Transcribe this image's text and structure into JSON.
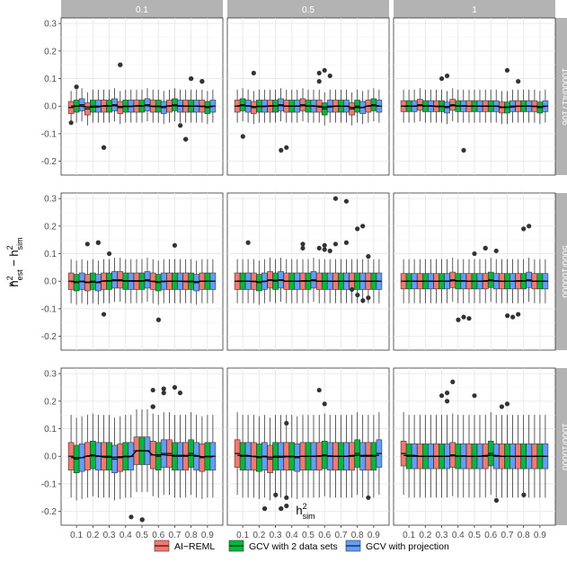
{
  "chart_data": {
    "type": "box",
    "xlabel": "h",
    "xlabel_sup": "2",
    "xlabel_sub": "sim",
    "ylabel_parts": {
      "hat": "^",
      "base": "h",
      "sup1": "2",
      "sub1": "est",
      "minus": " − h",
      "sup2": "2",
      "sub2": "sim"
    },
    "x_categories": [
      "0.1",
      "0.2",
      "0.3",
      "0.4",
      "0.5",
      "0.6",
      "0.7",
      "0.8",
      "0.9"
    ],
    "ylim": [
      -0.25,
      0.32
    ],
    "y_ticks": [
      -0.2,
      -0.1,
      0.0,
      0.1,
      0.2,
      0.3
    ],
    "y_tick_labels": [
      "-0.2",
      "-0.1",
      "0.0",
      "0.1",
      "0.2",
      "0.3"
    ],
    "grid": true,
    "legend_position": "bottom",
    "col_facets": [
      "0.1",
      "0.5",
      "1"
    ],
    "row_facets": [
      "10000/417106",
      "5000/100000",
      "1000/10000"
    ],
    "series": [
      {
        "name": "AI−REML",
        "color": "#F8766D"
      },
      {
        "name": "GCV with 2 data sets",
        "color": "#00BA38"
      },
      {
        "name": "GCV with projection",
        "color": "#619CFF"
      }
    ],
    "panels": [
      {
        "row": 0,
        "col": 0,
        "spread": 0.022,
        "whisker": 0.06,
        "medians": [
          [
            -0.005,
            0.0,
            0.005
          ],
          [
            -0.01,
            0.0,
            0.0
          ],
          [
            0.0,
            0.0,
            0.005
          ],
          [
            -0.005,
            0.0,
            0.0
          ],
          [
            0.0,
            0.0,
            0.005
          ],
          [
            0.0,
            0.0,
            -0.005
          ],
          [
            0.0,
            0.005,
            0.0
          ],
          [
            0.0,
            0.0,
            0.0
          ],
          [
            0.0,
            -0.005,
            0.0
          ]
        ],
        "outliers": [
          [
            0.1,
            0.07
          ],
          [
            0.1,
            -0.06
          ],
          [
            0.3,
            -0.15
          ],
          [
            0.3,
            -0.15
          ],
          [
            0.4,
            0.15
          ],
          [
            0.4,
            0.15
          ],
          [
            0.8,
            0.1
          ],
          [
            0.8,
            0.1
          ],
          [
            0.8,
            -0.12
          ],
          [
            0.8,
            -0.12
          ],
          [
            0.8,
            -0.07
          ],
          [
            0.9,
            0.09
          ],
          [
            0.9,
            0.09
          ]
        ]
      },
      {
        "row": 0,
        "col": 1,
        "spread": 0.022,
        "whisker": 0.06,
        "medians": [
          [
            0.0,
            0.005,
            0.0
          ],
          [
            -0.005,
            0.0,
            0.0
          ],
          [
            0.0,
            0.0,
            0.005
          ],
          [
            0.0,
            0.0,
            0.0
          ],
          [
            0.005,
            0.0,
            0.0
          ],
          [
            0.0,
            -0.01,
            0.0
          ],
          [
            0.0,
            0.0,
            0.0
          ],
          [
            -0.01,
            0.0,
            -0.005
          ],
          [
            0.0,
            0.005,
            0.0
          ]
        ],
        "outliers": [
          [
            0.2,
            0.12
          ],
          [
            0.2,
            -0.11
          ],
          [
            0.4,
            -0.16
          ],
          [
            0.4,
            -0.15
          ],
          [
            0.6,
            0.11
          ],
          [
            0.6,
            0.12
          ],
          [
            0.6,
            0.13
          ],
          [
            0.6,
            0.09
          ]
        ]
      },
      {
        "row": 0,
        "col": 2,
        "spread": 0.02,
        "whisker": 0.06,
        "medians": [
          [
            0.0,
            0.0,
            0.0
          ],
          [
            0.005,
            0.0,
            0.0
          ],
          [
            0.0,
            0.0,
            -0.005
          ],
          [
            0.005,
            0.0,
            0.0
          ],
          [
            0.0,
            0.0,
            0.0
          ],
          [
            0.0,
            0.0,
            0.0
          ],
          [
            -0.005,
            -0.005,
            0.0
          ],
          [
            0.0,
            0.0,
            0.0
          ],
          [
            0.0,
            -0.005,
            0.0
          ]
        ],
        "outliers": [
          [
            0.3,
            0.11
          ],
          [
            0.3,
            0.1
          ],
          [
            0.5,
            -0.16
          ],
          [
            0.7,
            0.13
          ],
          [
            0.8,
            0.09
          ]
        ]
      },
      {
        "row": 1,
        "col": 0,
        "spread": 0.03,
        "whisker": 0.08,
        "medians": [
          [
            0.0,
            -0.005,
            0.0
          ],
          [
            -0.005,
            0.0,
            -0.005
          ],
          [
            0.0,
            0.0,
            0.005
          ],
          [
            0.005,
            0.0,
            0.0
          ],
          [
            0.0,
            0.0,
            0.005
          ],
          [
            0.0,
            -0.005,
            0.0
          ],
          [
            0.0,
            0.0,
            0.0
          ],
          [
            0.0,
            0.0,
            -0.005
          ],
          [
            0.0,
            0.0,
            0.0
          ]
        ],
        "outliers": [
          [
            0.2,
            0.14
          ],
          [
            0.2,
            0.14
          ],
          [
            0.2,
            0.135
          ],
          [
            0.3,
            0.1
          ],
          [
            0.3,
            -0.12
          ],
          [
            0.7,
            0.13
          ],
          [
            0.7,
            -0.14
          ]
        ]
      },
      {
        "row": 1,
        "col": 1,
        "spread": 0.03,
        "whisker": 0.08,
        "medians": [
          [
            0.0,
            0.0,
            0.0
          ],
          [
            0.0,
            -0.005,
            0.0
          ],
          [
            0.005,
            0.0,
            0.005
          ],
          [
            0.0,
            0.0,
            0.0
          ],
          [
            0.0,
            0.0,
            0.005
          ],
          [
            0.0,
            0.0,
            0.0
          ],
          [
            0.0,
            0.0,
            0.0
          ],
          [
            0.0,
            0.0,
            0.0
          ],
          [
            0.0,
            0.0,
            0.0
          ]
        ],
        "outliers": [
          [
            0.1,
            0.14
          ],
          [
            0.5,
            0.135
          ],
          [
            0.5,
            0.12
          ],
          [
            0.6,
            0.11
          ],
          [
            0.6,
            0.13
          ],
          [
            0.6,
            0.115
          ],
          [
            0.6,
            0.12
          ],
          [
            0.7,
            0.3
          ],
          [
            0.7,
            0.29
          ],
          [
            0.7,
            0.135
          ],
          [
            0.7,
            0.14
          ],
          [
            0.8,
            0.2
          ],
          [
            0.8,
            0.19
          ],
          [
            0.8,
            -0.03
          ],
          [
            0.9,
            0.09
          ],
          [
            0.9,
            -0.05
          ],
          [
            0.9,
            -0.06
          ],
          [
            0.9,
            -0.07
          ]
        ]
      },
      {
        "row": 1,
        "col": 2,
        "spread": 0.028,
        "whisker": 0.08,
        "medians": [
          [
            0.0,
            0.0,
            0.0
          ],
          [
            0.0,
            0.0,
            0.0
          ],
          [
            0.0,
            0.0,
            0.0
          ],
          [
            0.005,
            0.0,
            0.0
          ],
          [
            0.0,
            0.0,
            0.0
          ],
          [
            0.0,
            0.005,
            0.0
          ],
          [
            0.0,
            0.0,
            0.0
          ],
          [
            0.0,
            0.0,
            0.005
          ],
          [
            0.0,
            0.0,
            0.0
          ]
        ],
        "outliers": [
          [
            0.5,
            0.1
          ],
          [
            0.5,
            -0.14
          ],
          [
            0.5,
            -0.13
          ],
          [
            0.5,
            -0.135
          ],
          [
            0.6,
            0.12
          ],
          [
            0.6,
            0.11
          ],
          [
            0.6,
            0.12
          ],
          [
            0.8,
            0.2
          ],
          [
            0.8,
            0.19
          ],
          [
            0.8,
            -0.13
          ],
          [
            0.8,
            -0.12
          ],
          [
            0.8,
            -0.125
          ]
        ]
      },
      {
        "row": 2,
        "col": 0,
        "spread": 0.05,
        "whisker": 0.15,
        "medians": [
          [
            0.0,
            -0.01,
            -0.005
          ],
          [
            0.0,
            0.005,
            0.0
          ],
          [
            0.0,
            0.0,
            -0.01
          ],
          [
            -0.005,
            0.0,
            0.0
          ],
          [
            0.02,
            0.02,
            0.02
          ],
          [
            0.005,
            0.0,
            0.01
          ],
          [
            0.01,
            0.0,
            0.0
          ],
          [
            0.0,
            0.01,
            0.0
          ],
          [
            -0.005,
            0.0,
            0.0
          ]
        ],
        "outliers": [
          [
            0.5,
            -0.22
          ],
          [
            0.6,
            0.24
          ],
          [
            0.6,
            0.245
          ],
          [
            0.6,
            0.23
          ],
          [
            0.6,
            0.18
          ],
          [
            0.6,
            0.18
          ],
          [
            0.6,
            -0.23
          ],
          [
            0.6,
            -0.23
          ],
          [
            0.7,
            0.25
          ],
          [
            0.7,
            0.23
          ]
        ]
      },
      {
        "row": 2,
        "col": 1,
        "spread": 0.05,
        "whisker": 0.15,
        "medians": [
          [
            0.01,
            0.0,
            0.0
          ],
          [
            0.0,
            -0.005,
            0.0
          ],
          [
            -0.01,
            0.0,
            0.0
          ],
          [
            0.0,
            0.0,
            -0.005
          ],
          [
            0.0,
            0.0,
            0.0
          ],
          [
            0.0,
            0.005,
            0.0
          ],
          [
            0.0,
            0.0,
            0.0
          ],
          [
            0.0,
            0.01,
            0.0
          ],
          [
            0.0,
            0.0,
            0.01
          ]
        ],
        "outliers": [
          [
            0.3,
            -0.19
          ],
          [
            0.3,
            -0.19
          ],
          [
            0.4,
            0.12
          ],
          [
            0.4,
            -0.14
          ],
          [
            0.4,
            -0.15
          ],
          [
            0.4,
            -0.18
          ],
          [
            0.4,
            -0.19
          ],
          [
            0.4,
            -0.19
          ],
          [
            0.6,
            0.19
          ],
          [
            0.6,
            0.24
          ],
          [
            0.9,
            -0.15
          ]
        ]
      },
      {
        "row": 2,
        "col": 2,
        "spread": 0.045,
        "whisker": 0.15,
        "medians": [
          [
            0.01,
            0.0,
            0.0
          ],
          [
            0.0,
            0.0,
            0.0
          ],
          [
            0.0,
            0.0,
            0.0
          ],
          [
            0.005,
            0.0,
            0.0
          ],
          [
            0.0,
            0.0,
            0.0
          ],
          [
            0.0,
            0.01,
            0.0
          ],
          [
            0.0,
            0.0,
            0.0
          ],
          [
            0.0,
            0.0,
            0.0
          ],
          [
            0.0,
            0.0,
            0.0
          ]
        ],
        "outliers": [
          [
            0.3,
            0.22
          ],
          [
            0.3,
            0.2
          ],
          [
            0.3,
            0.23
          ],
          [
            0.4,
            0.27
          ],
          [
            0.5,
            0.22
          ],
          [
            0.7,
            0.19
          ],
          [
            0.7,
            0.18
          ],
          [
            0.7,
            -0.16
          ],
          [
            0.9,
            -0.14
          ]
        ]
      }
    ]
  }
}
